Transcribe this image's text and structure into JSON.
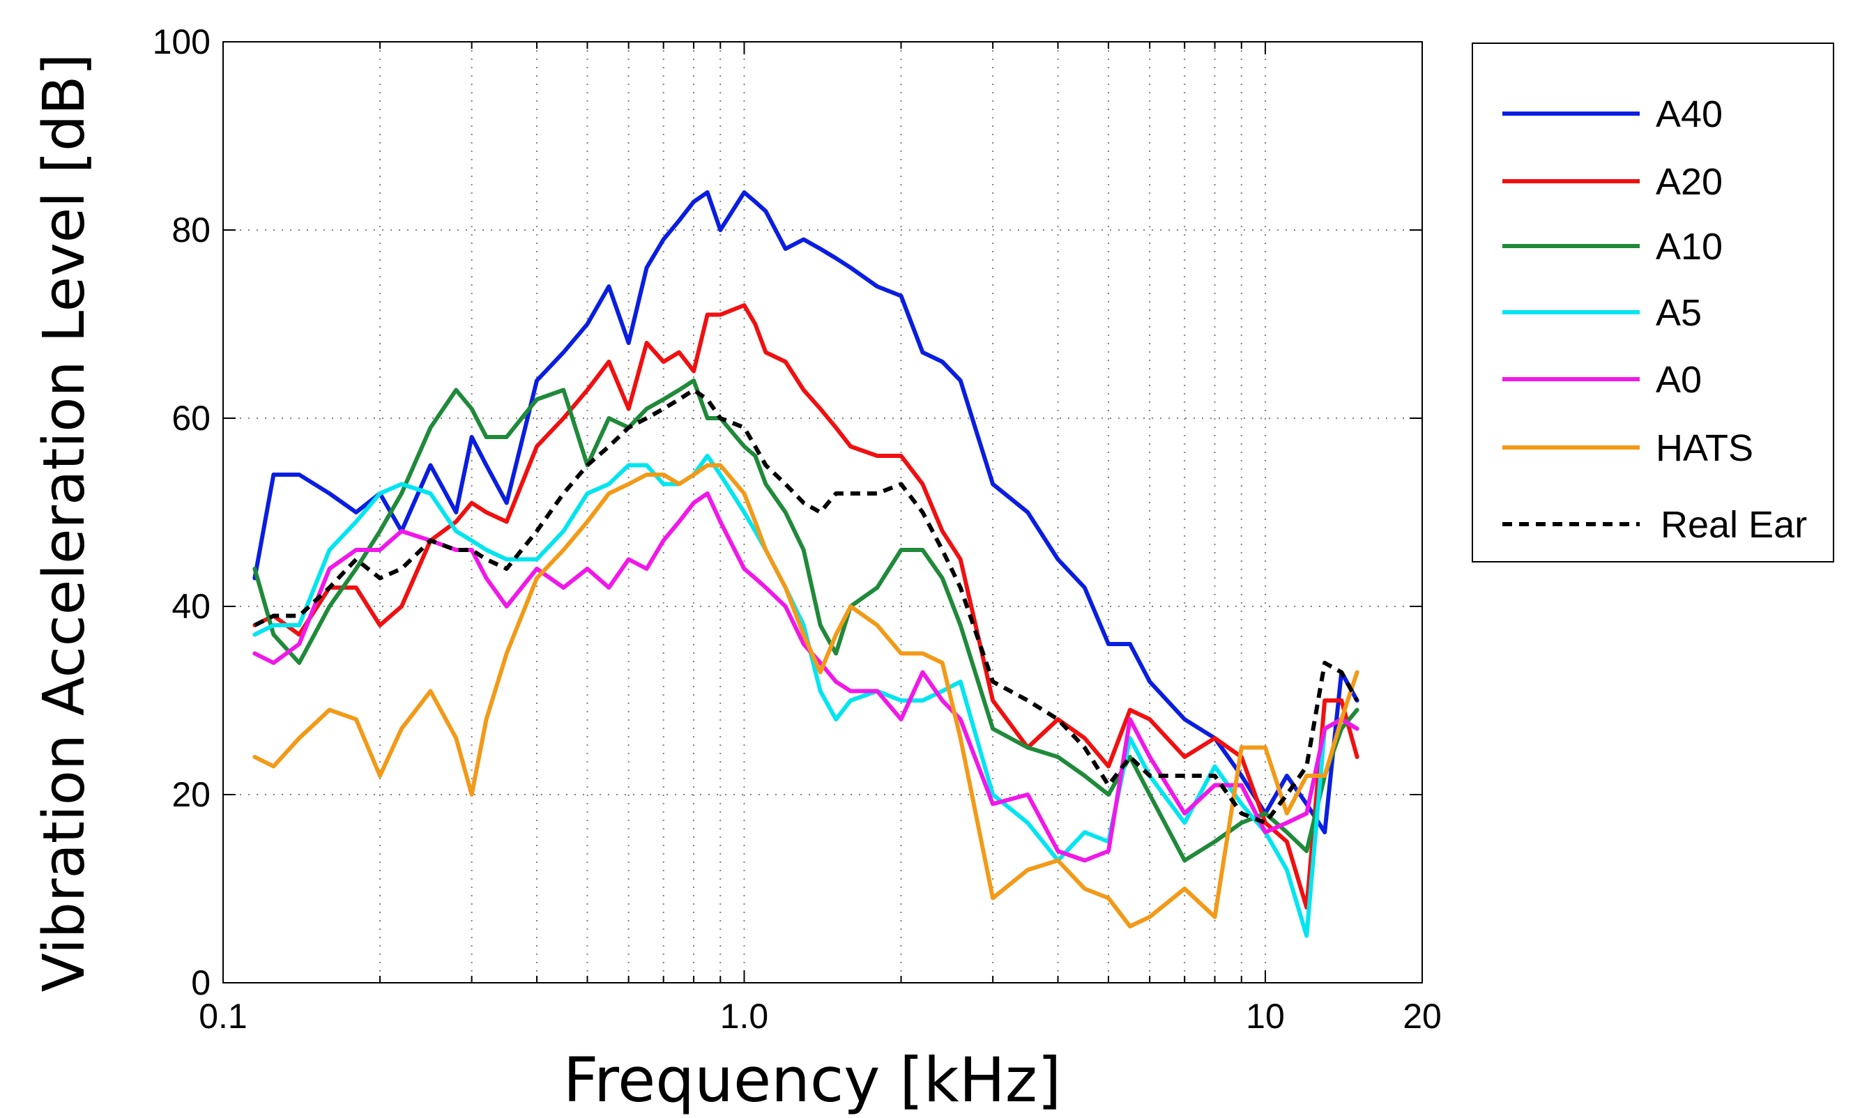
{
  "chart_data": {
    "type": "line",
    "xlabel": "Frequency [kHz]",
    "ylabel": "Vibration Acceleration Level [dB]",
    "xscale": "log",
    "xlim": [
      0.1,
      20
    ],
    "ylim": [
      0,
      100
    ],
    "x_ticks": [
      {
        "value": 0.1,
        "label": "0.1"
      },
      {
        "value": 1.0,
        "label": "1.0"
      },
      {
        "value": 10,
        "label": "10"
      },
      {
        "value": 20,
        "label": "20"
      }
    ],
    "y_ticks": [
      {
        "value": 0,
        "label": "0"
      },
      {
        "value": 20,
        "label": "20"
      },
      {
        "value": 40,
        "label": "40"
      },
      {
        "value": 60,
        "label": "60"
      },
      {
        "value": 80,
        "label": "80"
      },
      {
        "value": 100,
        "label": "100"
      }
    ],
    "grid": "dotted",
    "legend_position": "right",
    "series": [
      {
        "name": "A40",
        "color": "#0a1ee0",
        "dash": "solid",
        "x": [
          0.115,
          0.125,
          0.14,
          0.16,
          0.18,
          0.2,
          0.22,
          0.25,
          0.28,
          0.3,
          0.32,
          0.35,
          0.4,
          0.45,
          0.5,
          0.55,
          0.6,
          0.65,
          0.7,
          0.75,
          0.8,
          0.85,
          0.9,
          1.0,
          1.05,
          1.1,
          1.2,
          1.3,
          1.4,
          1.5,
          1.6,
          1.8,
          2.0,
          2.2,
          2.4,
          2.6,
          3.0,
          3.5,
          4.0,
          4.5,
          5.0,
          5.5,
          6.0,
          7.0,
          8.0,
          9.0,
          10.0,
          11.0,
          12.0,
          13.0,
          14.0,
          15.0
        ],
        "y": [
          43,
          54,
          54,
          52,
          50,
          52,
          48,
          55,
          50,
          58,
          55,
          51,
          64,
          67,
          70,
          74,
          68,
          76,
          79,
          81,
          83,
          84,
          80,
          84,
          83,
          82,
          78,
          79,
          78,
          77,
          76,
          74,
          73,
          67,
          66,
          64,
          53,
          50,
          45,
          42,
          36,
          36,
          32,
          28,
          26,
          22,
          18,
          22,
          19,
          16,
          33,
          30
        ]
      },
      {
        "name": "A20",
        "color": "#f01010",
        "dash": "solid",
        "x": [
          0.115,
          0.125,
          0.14,
          0.16,
          0.18,
          0.2,
          0.22,
          0.25,
          0.28,
          0.3,
          0.32,
          0.35,
          0.4,
          0.45,
          0.5,
          0.55,
          0.6,
          0.65,
          0.7,
          0.75,
          0.8,
          0.85,
          0.9,
          1.0,
          1.05,
          1.1,
          1.2,
          1.3,
          1.4,
          1.5,
          1.6,
          1.8,
          2.0,
          2.2,
          2.4,
          2.6,
          3.0,
          3.5,
          4.0,
          4.5,
          5.0,
          5.5,
          6.0,
          7.0,
          8.0,
          9.0,
          10.0,
          11.0,
          12.0,
          13.0,
          14.0,
          15.0
        ],
        "y": [
          38,
          39,
          37,
          42,
          42,
          38,
          40,
          47,
          49,
          51,
          50,
          49,
          57,
          60,
          63,
          66,
          61,
          68,
          66,
          67,
          65,
          71,
          71,
          72,
          70,
          67,
          66,
          63,
          61,
          59,
          57,
          56,
          56,
          53,
          48,
          45,
          30,
          25,
          28,
          26,
          23,
          29,
          28,
          24,
          26,
          24,
          17,
          15,
          8,
          30,
          30,
          24
        ]
      },
      {
        "name": "A10",
        "color": "#1f8a3a",
        "dash": "solid",
        "x": [
          0.115,
          0.125,
          0.14,
          0.16,
          0.18,
          0.2,
          0.22,
          0.25,
          0.28,
          0.3,
          0.32,
          0.35,
          0.4,
          0.45,
          0.5,
          0.55,
          0.6,
          0.65,
          0.7,
          0.75,
          0.8,
          0.85,
          0.9,
          1.0,
          1.05,
          1.1,
          1.2,
          1.3,
          1.4,
          1.5,
          1.6,
          1.8,
          2.0,
          2.2,
          2.4,
          2.6,
          3.0,
          3.5,
          4.0,
          4.5,
          5.0,
          5.5,
          6.0,
          7.0,
          8.0,
          9.0,
          10.0,
          11.0,
          12.0,
          13.0,
          14.0,
          15.0
        ],
        "y": [
          44,
          37,
          34,
          40,
          44,
          48,
          52,
          59,
          63,
          61,
          58,
          58,
          62,
          63,
          55,
          60,
          59,
          61,
          62,
          63,
          64,
          60,
          60,
          57,
          56,
          53,
          50,
          46,
          38,
          35,
          40,
          42,
          46,
          46,
          43,
          38,
          27,
          25,
          24,
          22,
          20,
          24,
          20,
          13,
          15,
          17,
          18,
          16,
          14,
          22,
          27,
          29
        ]
      },
      {
        "name": "A5",
        "color": "#00e5f0",
        "dash": "solid",
        "x": [
          0.115,
          0.125,
          0.14,
          0.16,
          0.18,
          0.2,
          0.22,
          0.25,
          0.28,
          0.3,
          0.32,
          0.35,
          0.4,
          0.45,
          0.5,
          0.55,
          0.6,
          0.65,
          0.7,
          0.75,
          0.8,
          0.85,
          0.9,
          1.0,
          1.05,
          1.1,
          1.2,
          1.3,
          1.4,
          1.5,
          1.6,
          1.8,
          2.0,
          2.2,
          2.4,
          2.6,
          3.0,
          3.5,
          4.0,
          4.5,
          5.0,
          5.5,
          6.0,
          7.0,
          8.0,
          9.0,
          10.0,
          11.0,
          12.0,
          13.0,
          14.0,
          15.0
        ],
        "y": [
          37,
          38,
          38,
          46,
          49,
          52,
          53,
          52,
          48,
          47,
          46,
          45,
          45,
          48,
          52,
          53,
          55,
          55,
          53,
          53,
          54,
          56,
          54,
          50,
          48,
          46,
          42,
          38,
          31,
          28,
          30,
          31,
          30,
          30,
          31,
          32,
          20,
          17,
          13,
          16,
          15,
          26,
          22,
          17,
          23,
          19,
          16,
          12,
          5,
          27,
          28,
          27
        ]
      },
      {
        "name": "A0",
        "color": "#f018e8",
        "dash": "solid",
        "x": [
          0.115,
          0.125,
          0.14,
          0.16,
          0.18,
          0.2,
          0.22,
          0.25,
          0.28,
          0.3,
          0.32,
          0.35,
          0.4,
          0.45,
          0.5,
          0.55,
          0.6,
          0.65,
          0.7,
          0.75,
          0.8,
          0.85,
          0.9,
          1.0,
          1.05,
          1.1,
          1.2,
          1.3,
          1.4,
          1.5,
          1.6,
          1.8,
          2.0,
          2.2,
          2.4,
          2.6,
          3.0,
          3.5,
          4.0,
          4.5,
          5.0,
          5.5,
          6.0,
          7.0,
          8.0,
          9.0,
          10.0,
          11.0,
          12.0,
          13.0,
          14.0,
          15.0
        ],
        "y": [
          35,
          34,
          36,
          44,
          46,
          46,
          48,
          47,
          46,
          46,
          43,
          40,
          44,
          42,
          44,
          42,
          45,
          44,
          47,
          49,
          51,
          52,
          49,
          44,
          43,
          42,
          40,
          36,
          34,
          32,
          31,
          31,
          28,
          33,
          30,
          28,
          19,
          20,
          14,
          13,
          14,
          28,
          24,
          18,
          21,
          21,
          16,
          17,
          18,
          27,
          28,
          27
        ]
      },
      {
        "name": "HATS",
        "color": "#f29a18",
        "dash": "solid",
        "x": [
          0.115,
          0.125,
          0.14,
          0.16,
          0.18,
          0.2,
          0.22,
          0.25,
          0.28,
          0.3,
          0.32,
          0.35,
          0.4,
          0.45,
          0.5,
          0.55,
          0.6,
          0.65,
          0.7,
          0.75,
          0.8,
          0.85,
          0.9,
          1.0,
          1.05,
          1.1,
          1.2,
          1.3,
          1.4,
          1.5,
          1.6,
          1.8,
          2.0,
          2.2,
          2.4,
          2.6,
          3.0,
          3.5,
          4.0,
          4.5,
          5.0,
          5.5,
          6.0,
          7.0,
          8.0,
          9.0,
          10.0,
          11.0,
          12.0,
          13.0,
          14.0,
          15.0
        ],
        "y": [
          24,
          23,
          26,
          29,
          28,
          22,
          27,
          31,
          26,
          20,
          28,
          35,
          43,
          46,
          49,
          52,
          53,
          54,
          54,
          53,
          54,
          55,
          55,
          52,
          49,
          46,
          42,
          37,
          33,
          37,
          40,
          38,
          35,
          35,
          34,
          26,
          9,
          12,
          13,
          10,
          9,
          6,
          7,
          10,
          7,
          25,
          25,
          18,
          22,
          22,
          28,
          33
        ]
      },
      {
        "name": "Real Ear",
        "color": "#000000",
        "dash": "dashed",
        "x": [
          0.115,
          0.125,
          0.14,
          0.16,
          0.18,
          0.2,
          0.22,
          0.25,
          0.28,
          0.3,
          0.32,
          0.35,
          0.4,
          0.45,
          0.5,
          0.55,
          0.6,
          0.65,
          0.7,
          0.75,
          0.8,
          0.85,
          0.9,
          1.0,
          1.05,
          1.1,
          1.2,
          1.3,
          1.4,
          1.5,
          1.6,
          1.8,
          2.0,
          2.2,
          2.4,
          2.6,
          3.0,
          3.5,
          4.0,
          4.5,
          5.0,
          5.5,
          6.0,
          7.0,
          8.0,
          9.0,
          10.0,
          11.0,
          12.0,
          13.0,
          14.0,
          15.0
        ],
        "y": [
          38,
          39,
          39,
          42,
          45,
          43,
          44,
          47,
          46,
          46,
          45,
          44,
          48,
          52,
          55,
          57,
          59,
          60,
          61,
          62,
          63,
          62,
          60,
          59,
          57,
          55,
          53,
          51,
          50,
          52,
          52,
          52,
          53,
          50,
          46,
          42,
          32,
          30,
          28,
          25,
          21,
          24,
          22,
          22,
          22,
          18,
          17,
          20,
          23,
          34,
          33,
          30
        ]
      }
    ]
  }
}
